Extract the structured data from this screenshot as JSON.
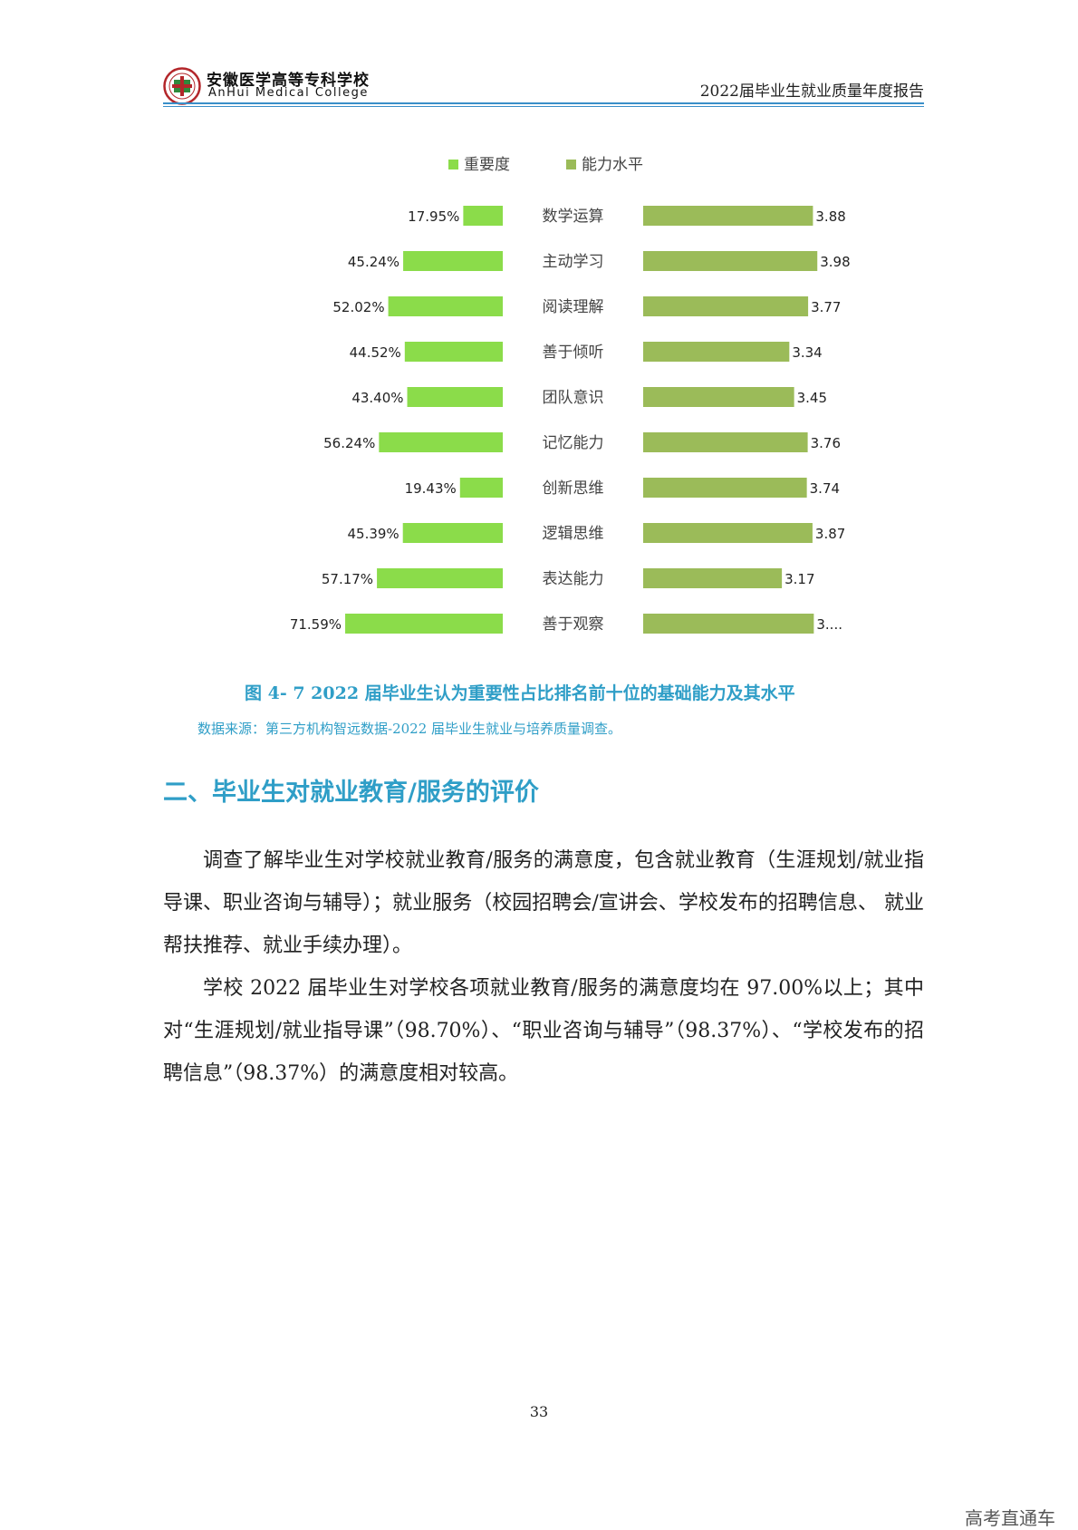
{
  "header": {
    "school_name_cn": "安徽医学高等专科学校",
    "school_name_en": "AnHui  Medical  College",
    "report_title": "2022届毕业生就业质量年度报告"
  },
  "colors": {
    "importance_bar": "#8bdc4a",
    "ability_bar": "#9bbb59",
    "accent": "#2f9ec7"
  },
  "chart_data": {
    "type": "bar",
    "layout": "butterfly",
    "series": [
      {
        "name": "重要度",
        "labels": [
          "17.95%",
          "45.24%",
          "52.02%",
          "44.52%",
          "43.40%",
          "56.24%",
          "19.43%",
          "45.39%",
          "57.17%",
          "71.59%"
        ],
        "values": [
          17.95,
          45.24,
          52.02,
          44.52,
          43.4,
          56.24,
          19.43,
          45.39,
          57.17,
          71.59
        ]
      },
      {
        "name": "能力水平",
        "labels": [
          "3.88",
          "3.98",
          "3.77",
          "3.34",
          "3.45",
          "3.76",
          "3.74",
          "3.87",
          "3.17",
          "3...."
        ],
        "values": [
          3.88,
          3.98,
          3.77,
          3.34,
          3.45,
          3.76,
          3.74,
          3.87,
          3.17,
          3.9
        ]
      }
    ],
    "categories": [
      "数学运算",
      "主动学习",
      "阅读理解",
      "善于倾听",
      "团队意识",
      "记忆能力",
      "创新思维",
      "逻辑思维",
      "表达能力",
      "善于观察"
    ],
    "legend_position": "top"
  },
  "figure": {
    "caption": "图 4- 7    2022 届毕业生认为重要性占比排名前十位的基础能力及其水平",
    "source": "数据来源：第三方机构智远数据-2022 届毕业生就业与培养质量调查。"
  },
  "section": {
    "heading": "二、毕业生对就业教育/服务的评价"
  },
  "body": {
    "paragraph_1": "调查了解毕业生对学校就业教育/服务的满意度，包含就业教育（生涯规划/就业指导课、职业咨询与辅导）；就业服务（校园招聘会/宣讲会、学校发布的招聘信息、 就业帮扶推荐、就业手续办理）。",
    "paragraph_2": "学校 2022 届毕业生对学校各项就业教育/服务的满意度均在 97.00%以上；其中对“生涯规划/就业指导课”（98.70%）、“职业咨询与辅导”（98.37%）、“学校发布的招聘信息”（98.37%）的满意度相对较高。"
  },
  "footer": {
    "page_number": "33",
    "watermark": "高考直通车"
  }
}
